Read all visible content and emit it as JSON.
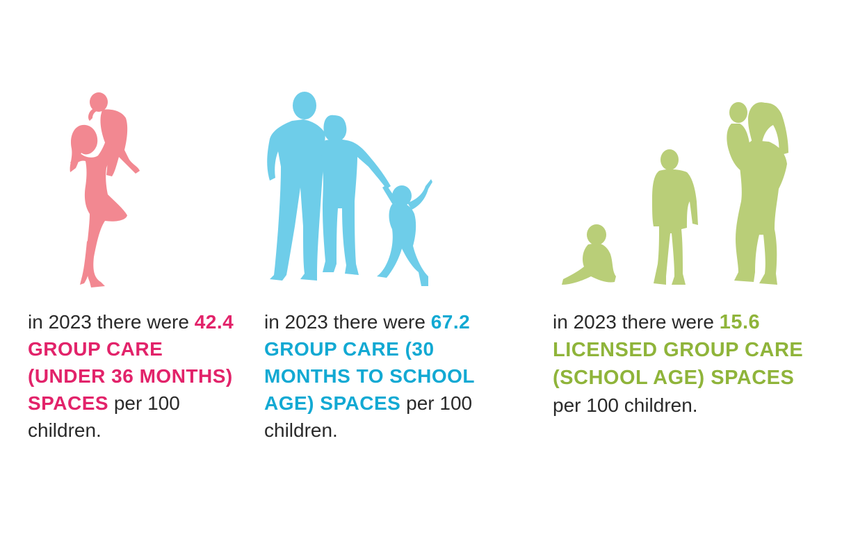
{
  "colors": {
    "pink": "#f28891",
    "pink_text": "#e2236a",
    "blue": "#6ecde9",
    "blue_text": "#12a9d3",
    "green": "#b9ce78",
    "green_text": "#8fb43a",
    "body_text": "#2a2a2a"
  },
  "icons": {
    "pink": "mother-lifting-child-icon",
    "blue": "family-holding-hands-icon",
    "green": "children-growing-icon"
  },
  "stats": [
    {
      "prefix": "in 2023 there were",
      "highlight": "42.4 GROUP CARE (UNDER 36 MONTHS) SPACES",
      "suffix": "per 100 children."
    },
    {
      "prefix": "in 2023 there were",
      "highlight": "67.2 GROUP CARE (30 MONTHS TO SCHOOL AGE) SPACES",
      "suffix": "per 100 children."
    },
    {
      "prefix": "in 2023 there were",
      "highlight": "15.6 LICENSED GROUP CARE (SCHOOL AGE) SPACES",
      "suffix": "per 100 children."
    }
  ]
}
